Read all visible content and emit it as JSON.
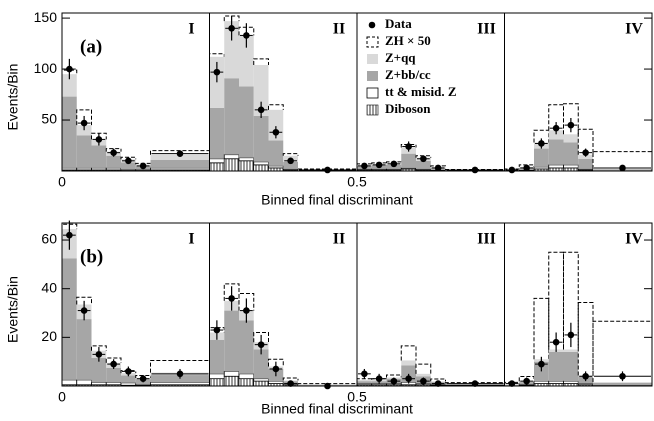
{
  "chart_data": [
    {
      "type": "histogram",
      "panel_label": "(a)",
      "region_labels": [
        "I",
        "II",
        "III",
        "IV"
      ],
      "x_label": "Binned final discriminant",
      "y_label": "Events/Bin",
      "xlim": [
        0,
        1
      ],
      "ylim": [
        0,
        155
      ],
      "xticks": [
        0,
        0.5
      ],
      "yticks": [
        50,
        100,
        150
      ],
      "bins": [
        0,
        0.025,
        0.05,
        0.075,
        0.1,
        0.125,
        0.15,
        0.25,
        0.275,
        0.3,
        0.325,
        0.35,
        0.375,
        0.4,
        0.5,
        0.525,
        0.55,
        0.575,
        0.6,
        0.625,
        0.65,
        0.75,
        0.775,
        0.8,
        0.825,
        0.85,
        0.875,
        0.9,
        1.0
      ],
      "data": {
        "name": "Data",
        "color": "#000000",
        "values": [
          100,
          47,
          31,
          18,
          10,
          5,
          17,
          97,
          140,
          133,
          60,
          38,
          10,
          1,
          5,
          6,
          7,
          24,
          12,
          3,
          1,
          1,
          3,
          27,
          42,
          45,
          18,
          3
        ],
        "errors": [
          10,
          7,
          6,
          4,
          3,
          2,
          3,
          10,
          12,
          12,
          8,
          6,
          3,
          1,
          2,
          2,
          3,
          5,
          3,
          2,
          1,
          1,
          2,
          5,
          6,
          7,
          4,
          2
        ]
      },
      "series": [
        {
          "name": "Diboson",
          "color": "#ffffff",
          "style": "hatch",
          "values": [
            1,
            1,
            1,
            1,
            0.5,
            0.5,
            1,
            8,
            12,
            10,
            6,
            3,
            1,
            0,
            1,
            1,
            1,
            2,
            1,
            0.5,
            0,
            0,
            0.5,
            2,
            3,
            3,
            1,
            0
          ]
        },
        {
          "name": "tt & misid. Z",
          "color": "#ffffff",
          "style": "fill",
          "values": [
            2,
            2,
            2,
            2,
            1,
            1,
            2,
            4,
            4,
            3,
            3,
            2,
            1,
            0,
            1,
            1,
            1,
            1,
            1,
            0.5,
            0,
            0,
            0.5,
            2,
            3,
            3,
            1,
            0.5
          ]
        },
        {
          "name": "Z+bb/cc",
          "color": "#a6a6a6",
          "style": "fill",
          "values": [
            70,
            32,
            22,
            12,
            7,
            4,
            8,
            50,
            75,
            70,
            45,
            25,
            7,
            1,
            3,
            4,
            4,
            14,
            8,
            2,
            0.5,
            1,
            2,
            18,
            25,
            22,
            10,
            1
          ]
        },
        {
          "name": "Z+qq",
          "color": "#d9d9d9",
          "style": "fill",
          "values": [
            22,
            10,
            6,
            4,
            3,
            1,
            5,
            50,
            56,
            50,
            50,
            30,
            6,
            1,
            1,
            1,
            2,
            6,
            3,
            1,
            0.5,
            0,
            1,
            6,
            9,
            8,
            4,
            0.5
          ]
        },
        {
          "name": "ZH × 50",
          "color": "#000000",
          "style": "dashed",
          "values": [
            4,
            15,
            6,
            3,
            2,
            1,
            4,
            3,
            5,
            8,
            6,
            5,
            2,
            0,
            1,
            1,
            1,
            3,
            2,
            1,
            0.5,
            1,
            2,
            12,
            25,
            30,
            25,
            17
          ]
        }
      ]
    },
    {
      "type": "histogram",
      "panel_label": "(b)",
      "region_labels": [
        "I",
        "II",
        "III",
        "IV"
      ],
      "x_label": "Binned final discriminant",
      "y_label": "Events/Bin",
      "xlim": [
        0,
        1
      ],
      "ylim": [
        0,
        67
      ],
      "xticks": [
        0,
        0.5
      ],
      "yticks": [
        20,
        40,
        60
      ],
      "bins": [
        0,
        0.025,
        0.05,
        0.075,
        0.1,
        0.125,
        0.15,
        0.25,
        0.275,
        0.3,
        0.325,
        0.35,
        0.375,
        0.4,
        0.5,
        0.525,
        0.55,
        0.575,
        0.6,
        0.625,
        0.65,
        0.75,
        0.775,
        0.8,
        0.825,
        0.85,
        0.875,
        0.9,
        1.0
      ],
      "data": {
        "color": "#000000",
        "values": [
          62,
          31,
          13,
          9,
          6,
          3,
          5,
          23,
          36,
          31,
          17,
          7,
          1,
          0,
          5,
          3,
          2,
          3,
          2,
          1,
          1,
          1,
          2,
          9,
          18,
          21,
          4,
          4
        ],
        "errors": [
          6,
          4,
          3,
          2,
          2,
          1.5,
          2,
          4,
          5,
          5,
          4,
          3,
          1,
          1,
          2,
          2,
          1.5,
          2,
          1.5,
          1,
          1,
          1,
          1.5,
          3,
          4,
          5,
          2,
          2
        ]
      },
      "series": [
        {
          "color": "#ffffff",
          "style": "hatch",
          "values": [
            0.5,
            0.5,
            0.5,
            0.5,
            0.3,
            0.3,
            0.5,
            3,
            4,
            3,
            2,
            1,
            0.5,
            0,
            0.5,
            0.5,
            0.5,
            0.5,
            0.5,
            0.3,
            0.2,
            0,
            0.3,
            1,
            1,
            1,
            0.5,
            0
          ]
        },
        {
          "color": "#ffffff",
          "style": "fill",
          "values": [
            2,
            2,
            1,
            1,
            1,
            0.5,
            1,
            2,
            2,
            2,
            1,
            1,
            0.5,
            0,
            0.5,
            0.5,
            0.5,
            1,
            0.5,
            0.3,
            0.2,
            0,
            0.3,
            1,
            1,
            1,
            0.5,
            0.3
          ]
        },
        {
          "color": "#a6a6a6",
          "style": "fill",
          "values": [
            50,
            25,
            10,
            6,
            3,
            2,
            3,
            14,
            25,
            22,
            12,
            5,
            1,
            0.5,
            1,
            1,
            2,
            7,
            3,
            1,
            0.5,
            0.5,
            1,
            8,
            12,
            12,
            3,
            1
          ]
        },
        {
          "color": "#d9d9d9",
          "style": "fill",
          "values": [
            12,
            6,
            3,
            2,
            1,
            0.5,
            1,
            3,
            4,
            4,
            3,
            1,
            0.3,
            0.2,
            0.5,
            0.5,
            0.5,
            2,
            1,
            0.3,
            0.2,
            0,
            0.3,
            1,
            1,
            1,
            0.3,
            0.3
          ]
        },
        {
          "color": "#000000",
          "style": "dashed",
          "values": [
            2,
            3,
            2,
            2,
            1,
            1,
            5,
            2,
            7,
            7,
            4,
            3,
            1,
            0.3,
            0.5,
            0.5,
            1,
            6,
            4,
            1,
            0.3,
            1,
            2,
            25,
            40,
            40,
            30,
            25
          ]
        }
      ]
    }
  ]
}
